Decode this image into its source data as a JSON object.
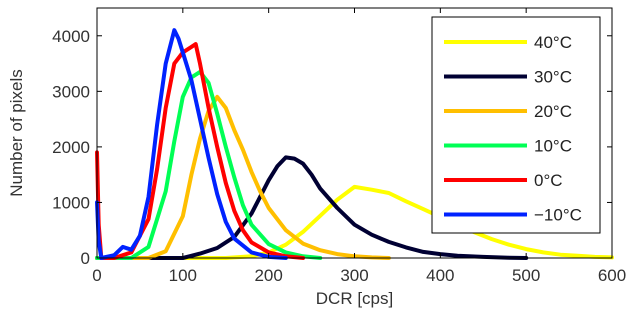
{
  "chart_data": {
    "type": "line",
    "title": "",
    "xlabel": "DCR [cps]",
    "ylabel": "Number of pixels",
    "xlim": [
      0,
      600
    ],
    "ylim": [
      0,
      4500
    ],
    "x_ticks": [
      0,
      100,
      200,
      300,
      400,
      500,
      600
    ],
    "x_tick_labels": [
      "0",
      "100",
      "200",
      "300",
      "400",
      "500",
      "600"
    ],
    "y_ticks": [
      0,
      1000,
      2000,
      3000,
      4000
    ],
    "y_tick_labels": [
      "0",
      "1000",
      "2000",
      "3000",
      "4000"
    ],
    "grid": false,
    "legend_position": "top-right",
    "series": [
      {
        "name": "40°C",
        "color": "#ffff00",
        "x": [
          0,
          150,
          180,
          200,
          220,
          240,
          260,
          280,
          300,
          320,
          340,
          360,
          380,
          400,
          420,
          440,
          460,
          480,
          500,
          520,
          540,
          560,
          580,
          600
        ],
        "y": [
          0,
          0,
          30,
          100,
          240,
          470,
          760,
          1050,
          1280,
          1230,
          1170,
          1020,
          880,
          740,
          600,
          460,
          340,
          240,
          160,
          100,
          60,
          40,
          20,
          10
        ]
      },
      {
        "name": "30°C",
        "color": "#000033",
        "x": [
          0,
          100,
          120,
          140,
          160,
          180,
          200,
          210,
          220,
          230,
          240,
          250,
          260,
          280,
          300,
          320,
          340,
          360,
          380,
          400,
          420,
          450,
          480,
          500
        ],
        "y": [
          0,
          0,
          80,
          180,
          380,
          800,
          1400,
          1650,
          1810,
          1790,
          1700,
          1500,
          1250,
          900,
          600,
          420,
          290,
          190,
          110,
          70,
          40,
          20,
          5,
          0
        ]
      },
      {
        "name": "20°C",
        "color": "#ffbf00",
        "x": [
          0,
          60,
          80,
          100,
          110,
          120,
          130,
          140,
          150,
          160,
          170,
          180,
          190,
          200,
          220,
          240,
          260,
          280,
          300,
          320,
          340
        ],
        "y": [
          0,
          0,
          120,
          750,
          1500,
          2150,
          2650,
          2900,
          2700,
          2300,
          1950,
          1550,
          1200,
          900,
          500,
          260,
          140,
          70,
          30,
          10,
          0
        ]
      },
      {
        "name": "10°C",
        "color": "#00ff55",
        "x": [
          0,
          40,
          60,
          80,
          90,
          100,
          110,
          120,
          130,
          140,
          150,
          160,
          170,
          180,
          200,
          220,
          240,
          260
        ],
        "y": [
          0,
          0,
          200,
          1200,
          2100,
          2900,
          3250,
          3350,
          3150,
          2600,
          2000,
          1450,
          950,
          600,
          250,
          100,
          30,
          0
        ]
      },
      {
        "name": "0°C",
        "color": "#ff0000",
        "x": [
          0,
          2,
          5,
          20,
          40,
          60,
          70,
          80,
          90,
          100,
          110,
          115,
          120,
          130,
          140,
          150,
          160,
          170,
          180,
          200,
          220,
          240
        ],
        "y": [
          1900,
          600,
          0,
          0,
          100,
          700,
          1600,
          2700,
          3500,
          3700,
          3800,
          3850,
          3500,
          2700,
          2000,
          1350,
          850,
          500,
          280,
          100,
          30,
          0
        ]
      },
      {
        "name": "−10°C",
        "color": "#0022ff",
        "x": [
          0,
          2,
          5,
          20,
          30,
          40,
          50,
          60,
          70,
          80,
          90,
          95,
          100,
          110,
          120,
          130,
          140,
          150,
          160,
          180,
          200,
          220
        ],
        "y": [
          1000,
          300,
          0,
          50,
          200,
          150,
          400,
          1100,
          2400,
          3500,
          4100,
          3950,
          3700,
          3200,
          2500,
          1800,
          1150,
          650,
          350,
          100,
          20,
          0
        ]
      }
    ]
  }
}
